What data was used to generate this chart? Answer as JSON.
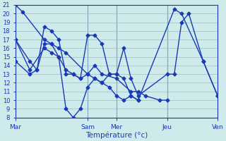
{
  "xlabel": "Température (°c)",
  "background_color": "#ceeaea",
  "line_color": "#1a3ab5",
  "grid_color": "#9bbfbf",
  "ylim": [
    8,
    21
  ],
  "yticks": [
    8,
    9,
    10,
    11,
    12,
    13,
    14,
    15,
    16,
    17,
    18,
    19,
    20,
    21
  ],
  "xtick_labels": [
    "Mar",
    "Sam",
    "Mer",
    "Jeu",
    "Ven"
  ],
  "xtick_positions": [
    0,
    10,
    14,
    21,
    28
  ],
  "x_total": 28,
  "series": [
    {
      "x": [
        0,
        1,
        4,
        5,
        6,
        7,
        10,
        11,
        12,
        13,
        14,
        15,
        16,
        17
      ],
      "y": [
        21,
        20.2,
        17,
        16.5,
        16,
        15.5,
        13,
        12.5,
        12,
        11.5,
        10.5,
        10,
        10.5,
        10
      ]
    },
    {
      "x": [
        0,
        2,
        3,
        4,
        5,
        6,
        7,
        8,
        9,
        10,
        11,
        12,
        13,
        14,
        15,
        16,
        17,
        22,
        23,
        26,
        28
      ],
      "y": [
        17,
        14.5,
        13.5,
        18.5,
        18,
        17,
        13,
        13,
        12.5,
        17.5,
        17.5,
        16.5,
        13,
        13,
        12.5,
        10.5,
        10,
        20.5,
        20,
        14.5,
        10.5
      ]
    },
    {
      "x": [
        0,
        2,
        3,
        4,
        5,
        6,
        7,
        8,
        9,
        10,
        11,
        12,
        13,
        14,
        15,
        16,
        17,
        21,
        22,
        23,
        24,
        26,
        28
      ],
      "y": [
        14.5,
        13,
        13.5,
        16.5,
        16.5,
        15,
        9,
        8,
        9,
        11.5,
        12.5,
        12,
        13,
        13,
        16,
        12.5,
        10.5,
        13,
        13,
        19,
        20,
        14.5,
        10.5
      ]
    },
    {
      "x": [
        0,
        2,
        4,
        5,
        6,
        7,
        8,
        9,
        10,
        11,
        12,
        14,
        16,
        17,
        18,
        20,
        21
      ],
      "y": [
        17,
        13.5,
        16,
        15.5,
        15,
        13.5,
        13,
        12.5,
        13,
        14,
        13,
        12.5,
        11,
        11,
        10.5,
        10,
        10
      ]
    }
  ],
  "marker": "D",
  "markersize": 2.5,
  "linewidth": 1.0
}
